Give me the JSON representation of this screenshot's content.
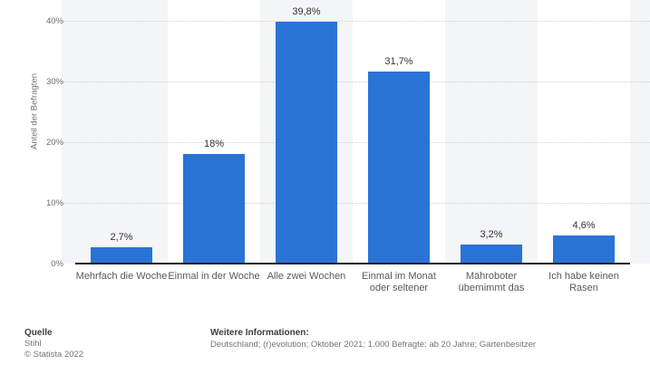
{
  "chart_data": {
    "type": "bar",
    "title": "",
    "categories": [
      "Mehrfach die Woche",
      "Einmal in der Woche",
      "Alle zwei Wochen",
      "Einmal im Monat oder seltener",
      "Mähroboter übernimmt das",
      "Ich habe keinen Rasen"
    ],
    "values": [
      2.7,
      18,
      39.8,
      31.7,
      3.2,
      4.6
    ],
    "value_labels": [
      "2,7%",
      "18%",
      "39,8%",
      "31,7%",
      "3,2%",
      "4,6%"
    ],
    "xlabel": "",
    "ylabel": "Anteil der Befragten",
    "ylim": [
      0,
      40
    ],
    "yticks": [
      0,
      10,
      20,
      30,
      40
    ],
    "ytick_labels": [
      "0%",
      "10%",
      "20%",
      "30%",
      "40%"
    ],
    "grid": "horizontal-dotted",
    "legend": "none",
    "bar_color": "#2a73d6",
    "plot_band_shaded": "#f4f5f6",
    "plot_band_unshaded": "#ffffff"
  },
  "footer": {
    "source_label": "Quelle",
    "source": "Stihl",
    "copyright": "© Statista 2022",
    "info_label": "Weitere Informationen:",
    "info": "Deutschland; (r)evolution; Oktober 2021; 1.000 Befragte; ab 20 Jahre; Gartenbesitzer"
  }
}
